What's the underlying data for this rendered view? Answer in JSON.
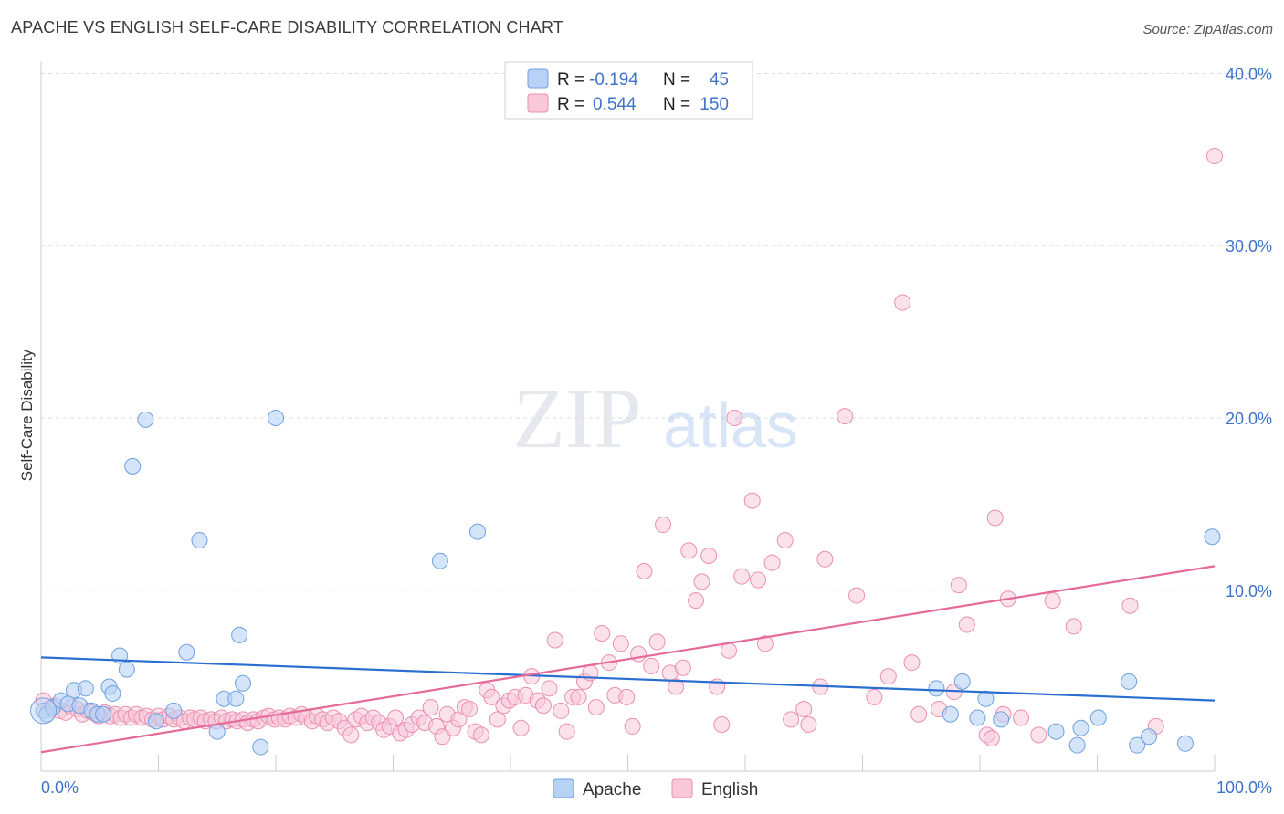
{
  "title": "APACHE VS ENGLISH SELF-CARE DISABILITY CORRELATION CHART",
  "source": "Source: ZipAtlas.com",
  "watermark": {
    "zip": "ZIP",
    "atlas": "atlas"
  },
  "colors": {
    "apache_fill": "#b8d2f5",
    "apache_stroke": "#6fa0e0",
    "apache_line": "#2a6fd0",
    "english_fill": "#f8c8d8",
    "english_stroke": "#ec8fb0",
    "english_line": "#e56a99",
    "tick": "#3f73c8",
    "grid": "#dddddd"
  },
  "legend": {
    "rows": [
      {
        "r_label": "R =",
        "r_value": "-0.194",
        "n_label": "N =",
        "n_value": "45"
      },
      {
        "r_label": "R =",
        "r_value": "0.544",
        "n_label": "N =",
        "n_value": "150"
      }
    ]
  },
  "chart_data": {
    "type": "scatter",
    "title": "APACHE VS ENGLISH SELF-CARE DISABILITY CORRELATION CHART",
    "xlabel": "",
    "ylabel": "Self-Care Disability",
    "xlim": [
      0,
      100
    ],
    "ylim": [
      -0.5,
      40.5
    ],
    "x_tick_labels": [
      "0.0%",
      "100.0%"
    ],
    "y_ticks": [
      10,
      20,
      30,
      40
    ],
    "y_tick_labels": [
      "10.0%",
      "20.0%",
      "30.0%",
      "40.0%"
    ],
    "legend_position": "bottom-center",
    "series": [
      {
        "name": "Apache",
        "trend": {
          "x": [
            0,
            100
          ],
          "y": [
            6.1,
            3.6
          ]
        },
        "points": [
          [
            0.2,
            3.0
          ],
          [
            0.5,
            2.8
          ],
          [
            1.0,
            3.2
          ],
          [
            1.7,
            3.6
          ],
          [
            2.3,
            3.4
          ],
          [
            2.8,
            4.2
          ],
          [
            3.3,
            3.3
          ],
          [
            3.8,
            4.3
          ],
          [
            4.3,
            3.0
          ],
          [
            4.8,
            2.8
          ],
          [
            5.3,
            2.8
          ],
          [
            5.8,
            4.4
          ],
          [
            6.1,
            4.0
          ],
          [
            6.7,
            6.2
          ],
          [
            7.3,
            5.4
          ],
          [
            7.8,
            17.2
          ],
          [
            8.9,
            19.9
          ],
          [
            9.8,
            2.4
          ],
          [
            11.3,
            3.0
          ],
          [
            12.4,
            6.4
          ],
          [
            13.5,
            12.9
          ],
          [
            15.0,
            1.8
          ],
          [
            15.6,
            3.7
          ],
          [
            16.6,
            3.7
          ],
          [
            16.9,
            7.4
          ],
          [
            17.2,
            4.6
          ],
          [
            18.7,
            0.9
          ],
          [
            20.0,
            20.0
          ],
          [
            34.0,
            11.7
          ],
          [
            37.2,
            13.4
          ],
          [
            76.3,
            4.3
          ],
          [
            77.5,
            2.8
          ],
          [
            78.5,
            4.7
          ],
          [
            79.8,
            2.6
          ],
          [
            80.5,
            3.7
          ],
          [
            81.8,
            2.5
          ],
          [
            86.5,
            1.8
          ],
          [
            88.3,
            1.0
          ],
          [
            88.6,
            2.0
          ],
          [
            90.1,
            2.6
          ],
          [
            92.7,
            4.7
          ],
          [
            93.4,
            1.0
          ],
          [
            94.4,
            1.5
          ],
          [
            97.5,
            1.1
          ],
          [
            99.8,
            13.1
          ]
        ]
      },
      {
        "name": "English",
        "trend": {
          "x": [
            0,
            100
          ],
          "y": [
            0.6,
            11.4
          ]
        },
        "points": [
          [
            0.2,
            3.6
          ],
          [
            0.7,
            3.1
          ],
          [
            1.2,
            3.3
          ],
          [
            1.6,
            3.0
          ],
          [
            2.1,
            2.9
          ],
          [
            2.6,
            3.2
          ],
          [
            3.1,
            3.1
          ],
          [
            3.5,
            2.8
          ],
          [
            4.0,
            3.0
          ],
          [
            4.4,
            2.9
          ],
          [
            4.9,
            2.7
          ],
          [
            5.4,
            2.9
          ],
          [
            5.9,
            2.7
          ],
          [
            6.3,
            2.8
          ],
          [
            6.8,
            2.6
          ],
          [
            7.2,
            2.8
          ],
          [
            7.7,
            2.6
          ],
          [
            8.1,
            2.8
          ],
          [
            8.6,
            2.6
          ],
          [
            9.0,
            2.7
          ],
          [
            9.5,
            2.5
          ],
          [
            10.0,
            2.7
          ],
          [
            10.4,
            2.5
          ],
          [
            10.9,
            2.7
          ],
          [
            11.3,
            2.5
          ],
          [
            11.8,
            2.6
          ],
          [
            12.2,
            2.4
          ],
          [
            12.7,
            2.6
          ],
          [
            13.1,
            2.5
          ],
          [
            13.6,
            2.6
          ],
          [
            14.0,
            2.4
          ],
          [
            14.5,
            2.5
          ],
          [
            14.9,
            2.4
          ],
          [
            15.4,
            2.6
          ],
          [
            15.8,
            2.4
          ],
          [
            16.3,
            2.5
          ],
          [
            16.7,
            2.4
          ],
          [
            17.2,
            2.5
          ],
          [
            17.6,
            2.3
          ],
          [
            18.1,
            2.5
          ],
          [
            18.5,
            2.4
          ],
          [
            19.0,
            2.6
          ],
          [
            19.4,
            2.7
          ],
          [
            19.9,
            2.5
          ],
          [
            20.3,
            2.6
          ],
          [
            20.8,
            2.5
          ],
          [
            21.2,
            2.7
          ],
          [
            21.7,
            2.6
          ],
          [
            22.2,
            2.8
          ],
          [
            22.6,
            2.6
          ],
          [
            23.1,
            2.4
          ],
          [
            23.5,
            2.7
          ],
          [
            24.0,
            2.5
          ],
          [
            24.4,
            2.3
          ],
          [
            24.9,
            2.6
          ],
          [
            25.4,
            2.4
          ],
          [
            25.9,
            2.0
          ],
          [
            26.4,
            1.6
          ],
          [
            26.8,
            2.5
          ],
          [
            27.3,
            2.7
          ],
          [
            27.8,
            2.3
          ],
          [
            28.3,
            2.6
          ],
          [
            28.8,
            2.3
          ],
          [
            29.2,
            1.9
          ],
          [
            29.7,
            2.1
          ],
          [
            30.2,
            2.6
          ],
          [
            30.6,
            1.7
          ],
          [
            31.1,
            1.9
          ],
          [
            31.6,
            2.2
          ],
          [
            32.2,
            2.6
          ],
          [
            32.7,
            2.3
          ],
          [
            33.2,
            3.2
          ],
          [
            33.7,
            2.1
          ],
          [
            34.2,
            1.5
          ],
          [
            34.6,
            2.8
          ],
          [
            35.1,
            2.0
          ],
          [
            35.6,
            2.5
          ],
          [
            36.1,
            3.2
          ],
          [
            36.5,
            3.1
          ],
          [
            37.0,
            1.8
          ],
          [
            37.5,
            1.6
          ],
          [
            38.0,
            4.2
          ],
          [
            38.4,
            3.8
          ],
          [
            38.9,
            2.5
          ],
          [
            39.4,
            3.3
          ],
          [
            39.9,
            3.6
          ],
          [
            40.4,
            3.8
          ],
          [
            40.9,
            2.0
          ],
          [
            41.3,
            3.9
          ],
          [
            41.8,
            5.0
          ],
          [
            42.3,
            3.6
          ],
          [
            42.8,
            3.3
          ],
          [
            43.3,
            4.3
          ],
          [
            43.8,
            7.1
          ],
          [
            44.3,
            3.0
          ],
          [
            44.8,
            1.8
          ],
          [
            45.3,
            3.8
          ],
          [
            45.8,
            3.8
          ],
          [
            46.3,
            4.7
          ],
          [
            46.8,
            5.2
          ],
          [
            47.3,
            3.2
          ],
          [
            47.8,
            7.5
          ],
          [
            48.4,
            5.8
          ],
          [
            48.9,
            3.9
          ],
          [
            49.4,
            6.9
          ],
          [
            49.9,
            3.8
          ],
          [
            50.4,
            2.1
          ],
          [
            50.9,
            6.3
          ],
          [
            51.4,
            11.1
          ],
          [
            52.0,
            5.6
          ],
          [
            52.5,
            7.0
          ],
          [
            53.0,
            13.8
          ],
          [
            53.6,
            5.2
          ],
          [
            54.1,
            4.4
          ],
          [
            54.7,
            5.5
          ],
          [
            55.2,
            12.3
          ],
          [
            55.8,
            9.4
          ],
          [
            56.3,
            10.5
          ],
          [
            56.9,
            12.0
          ],
          [
            57.6,
            4.4
          ],
          [
            58.0,
            2.2
          ],
          [
            58.6,
            6.5
          ],
          [
            59.1,
            20.0
          ],
          [
            59.7,
            10.8
          ],
          [
            60.6,
            15.2
          ],
          [
            61.1,
            10.6
          ],
          [
            61.7,
            6.9
          ],
          [
            62.3,
            11.6
          ],
          [
            63.4,
            12.9
          ],
          [
            63.9,
            2.5
          ],
          [
            65.0,
            3.1
          ],
          [
            65.4,
            2.2
          ],
          [
            66.4,
            4.4
          ],
          [
            66.8,
            11.8
          ],
          [
            68.5,
            20.1
          ],
          [
            69.5,
            9.7
          ],
          [
            71.0,
            3.8
          ],
          [
            72.2,
            5.0
          ],
          [
            73.4,
            26.7
          ],
          [
            74.2,
            5.8
          ],
          [
            74.8,
            2.8
          ],
          [
            76.5,
            3.1
          ],
          [
            77.8,
            4.1
          ],
          [
            78.2,
            10.3
          ],
          [
            78.9,
            8.0
          ],
          [
            80.6,
            1.6
          ],
          [
            81.0,
            1.4
          ],
          [
            81.3,
            14.2
          ],
          [
            82.0,
            2.8
          ],
          [
            82.4,
            9.5
          ],
          [
            83.5,
            2.6
          ],
          [
            85.0,
            1.6
          ],
          [
            86.2,
            9.4
          ],
          [
            88.0,
            7.9
          ],
          [
            92.8,
            9.1
          ],
          [
            95.0,
            2.1
          ],
          [
            100.0,
            35.2
          ]
        ]
      }
    ]
  }
}
